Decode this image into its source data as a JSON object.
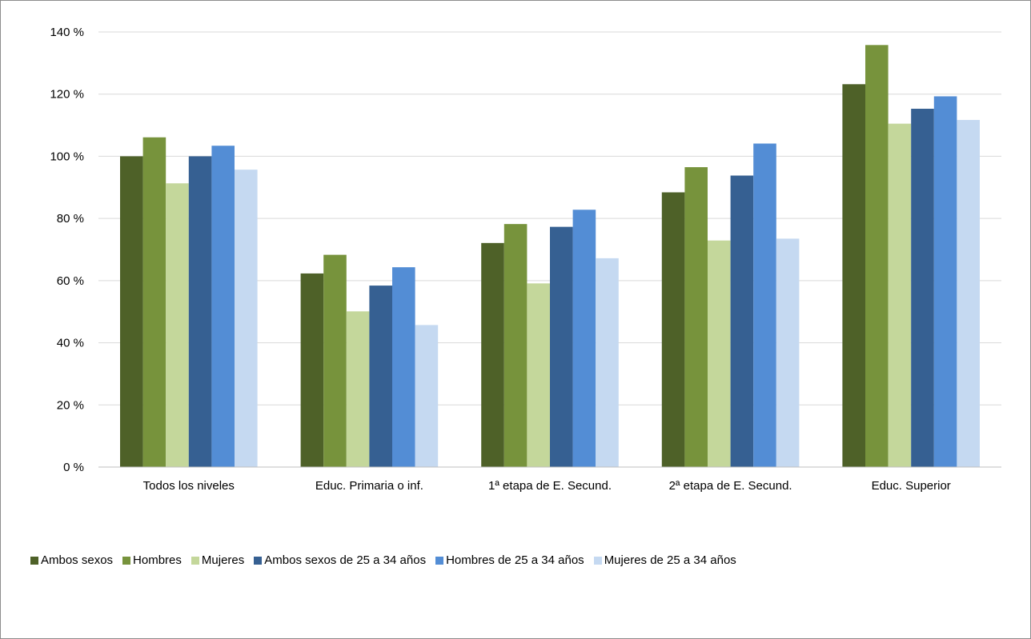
{
  "chart_data": {
    "type": "bar",
    "categories": [
      "Todos los niveles",
      "Educ. Primaria o inf.",
      "1ª etapa de E. Secund.",
      "2ª etapa de E. Secund.",
      "Educ. Superior"
    ],
    "series": [
      {
        "name": "Ambos sexos",
        "color": "#4e6128",
        "values": [
          100,
          62.3,
          72.1,
          88.4,
          123.2
        ]
      },
      {
        "name": "Hombres",
        "color": "#77933c",
        "values": [
          106.1,
          68.3,
          78.2,
          96.5,
          135.8
        ]
      },
      {
        "name": "Mujeres",
        "color": "#c4d79b",
        "values": [
          91.3,
          50.1,
          59.1,
          72.9,
          110.5
        ]
      },
      {
        "name": "Ambos sexos de 25 a 34 años",
        "color": "#366092",
        "values": [
          100,
          58.4,
          77.3,
          93.8,
          115.3
        ]
      },
      {
        "name": "Hombres de 25 a 34 años",
        "color": "#538dd5",
        "values": [
          103.4,
          64.3,
          82.8,
          104.1,
          119.3
        ]
      },
      {
        "name": "Mujeres de 25 a 34 años",
        "color": "#c5d9f1",
        "values": [
          95.7,
          45.7,
          67.2,
          73.5,
          111.7
        ]
      }
    ],
    "ylim": [
      0,
      140
    ],
    "yticks": [
      0,
      20,
      40,
      60,
      80,
      100,
      120,
      140
    ],
    "ytick_labels": [
      "0 %",
      "20 %",
      "40 %",
      "60 %",
      "80 %",
      "100 %",
      "120 %",
      "140 %"
    ],
    "grid": true,
    "legend_position": "bottom-left",
    "title": "",
    "xlabel": "",
    "ylabel": ""
  }
}
